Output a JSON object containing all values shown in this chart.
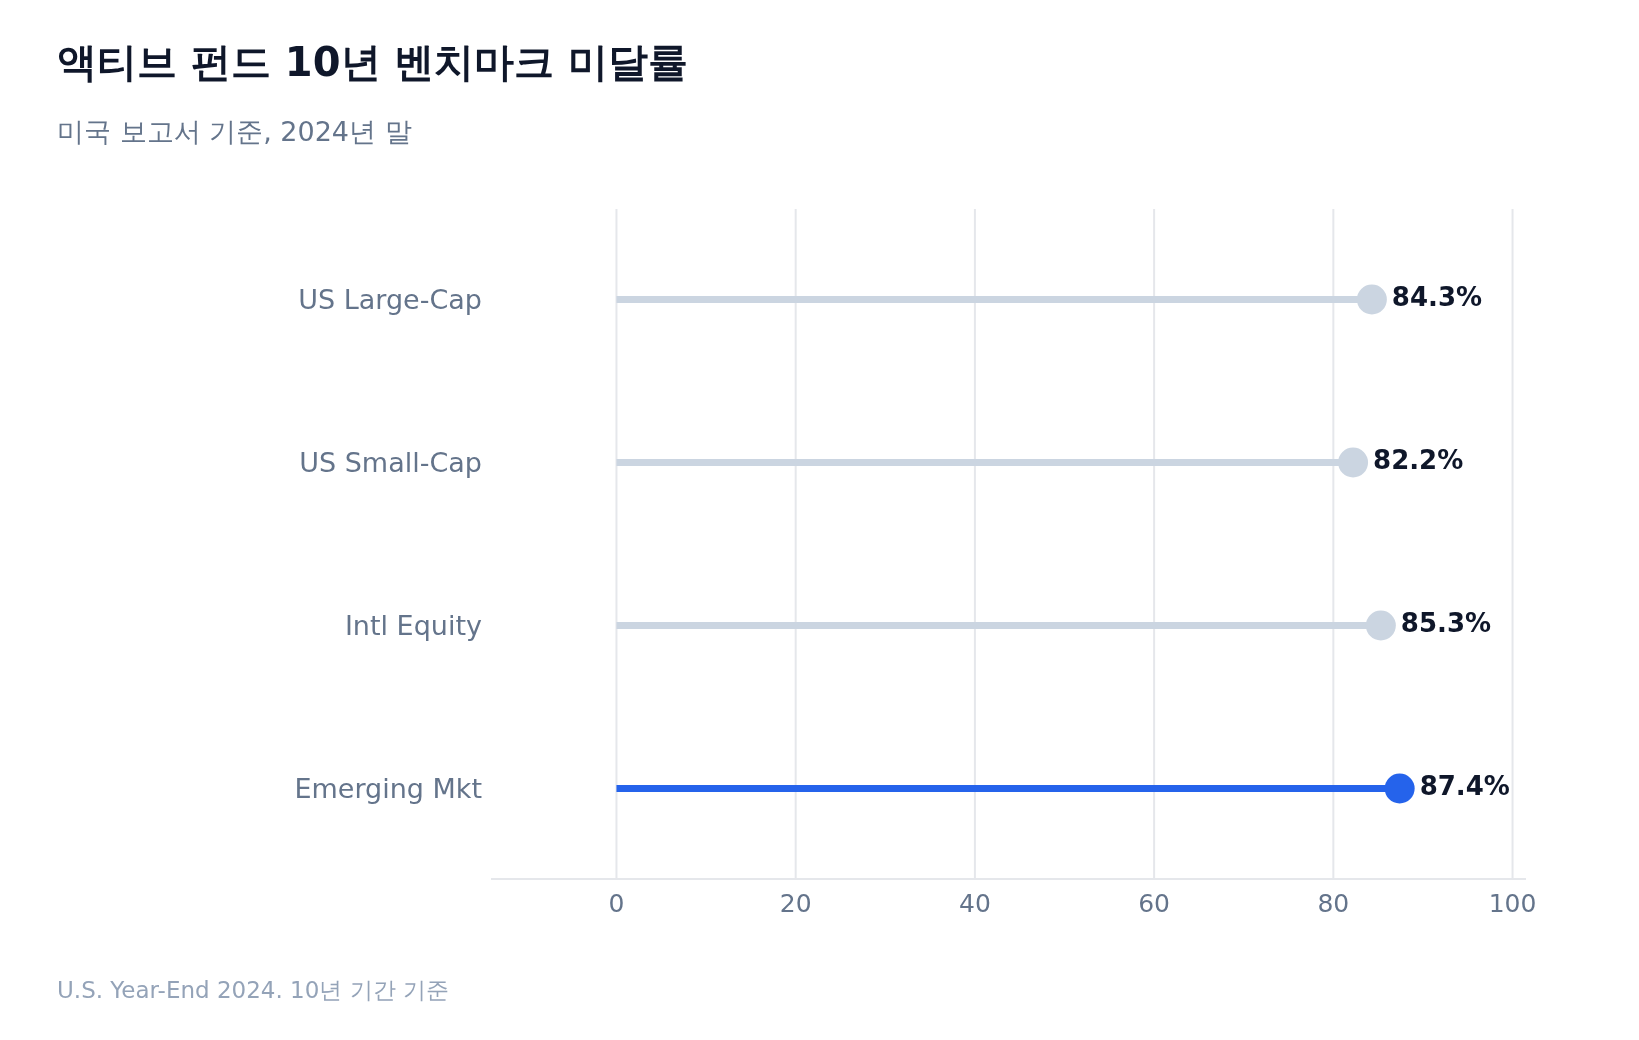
{
  "chart_data": {
    "type": "lollipop",
    "orientation": "horizontal",
    "title": "액티브 펀드 10년 벤치마크 미달률",
    "subtitle": "미국 보고서 기준, 2024년 말",
    "categories": [
      "US Large-Cap",
      "US Small-Cap",
      "Intl Equity",
      "Emerging Mkt"
    ],
    "values": [
      84.3,
      82.2,
      85.3,
      87.4
    ],
    "colors": [
      "#cbd5e1",
      "#cbd5e1",
      "#cbd5e1",
      "#2563eb"
    ],
    "value_labels": [
      "84.3%",
      "82.2%",
      "85.3%",
      "87.4%"
    ],
    "xlim": [
      -14,
      101.5
    ],
    "xticks": [
      0,
      20,
      40,
      60,
      80,
      100
    ],
    "grid": "x",
    "annotations": [
      "U.S. Year-End 2024. 10년 기간 기준"
    ]
  }
}
